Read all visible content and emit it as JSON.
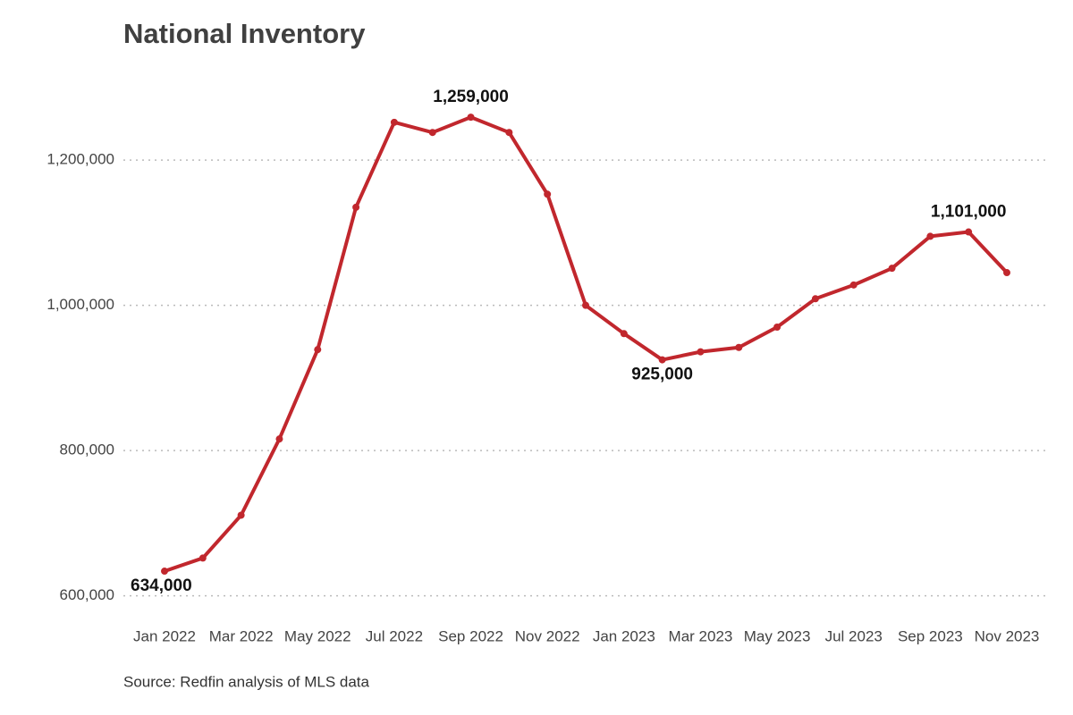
{
  "chart_data": {
    "type": "line",
    "title": "National Inventory",
    "source": "Source: Redfin analysis of MLS data",
    "categories": [
      "Jan 2022",
      null,
      "Mar 2022",
      null,
      "May 2022",
      null,
      "Jul 2022",
      null,
      "Sep 2022",
      null,
      "Nov 2022",
      null,
      "Jan 2023",
      null,
      "Mar 2023",
      null,
      "May 2023",
      null,
      "Jul 2023",
      null,
      "Sep 2023",
      null,
      "Nov 2023"
    ],
    "values": [
      634000,
      652000,
      711000,
      816000,
      939000,
      1135000,
      1252000,
      1238000,
      1259000,
      1238000,
      1153000,
      1000000,
      961000,
      925000,
      936000,
      942000,
      970000,
      1009000,
      1028000,
      1051000,
      1095000,
      1101000,
      1045000
    ],
    "value_labels": [
      "634,000",
      null,
      null,
      null,
      null,
      null,
      null,
      null,
      "1,259,000",
      null,
      null,
      null,
      null,
      "925,000",
      null,
      null,
      null,
      null,
      null,
      null,
      null,
      "1,101,000",
      null
    ],
    "color": "#c1272d",
    "ylim": [
      575000,
      1285000
    ],
    "yticks": [
      {
        "value": 600000,
        "label": "600,000"
      },
      {
        "value": 800000,
        "label": "800,000"
      },
      {
        "value": 1000000,
        "label": "1,000,000"
      },
      {
        "value": 1200000,
        "label": "1,200,000"
      }
    ],
    "grid": true
  }
}
